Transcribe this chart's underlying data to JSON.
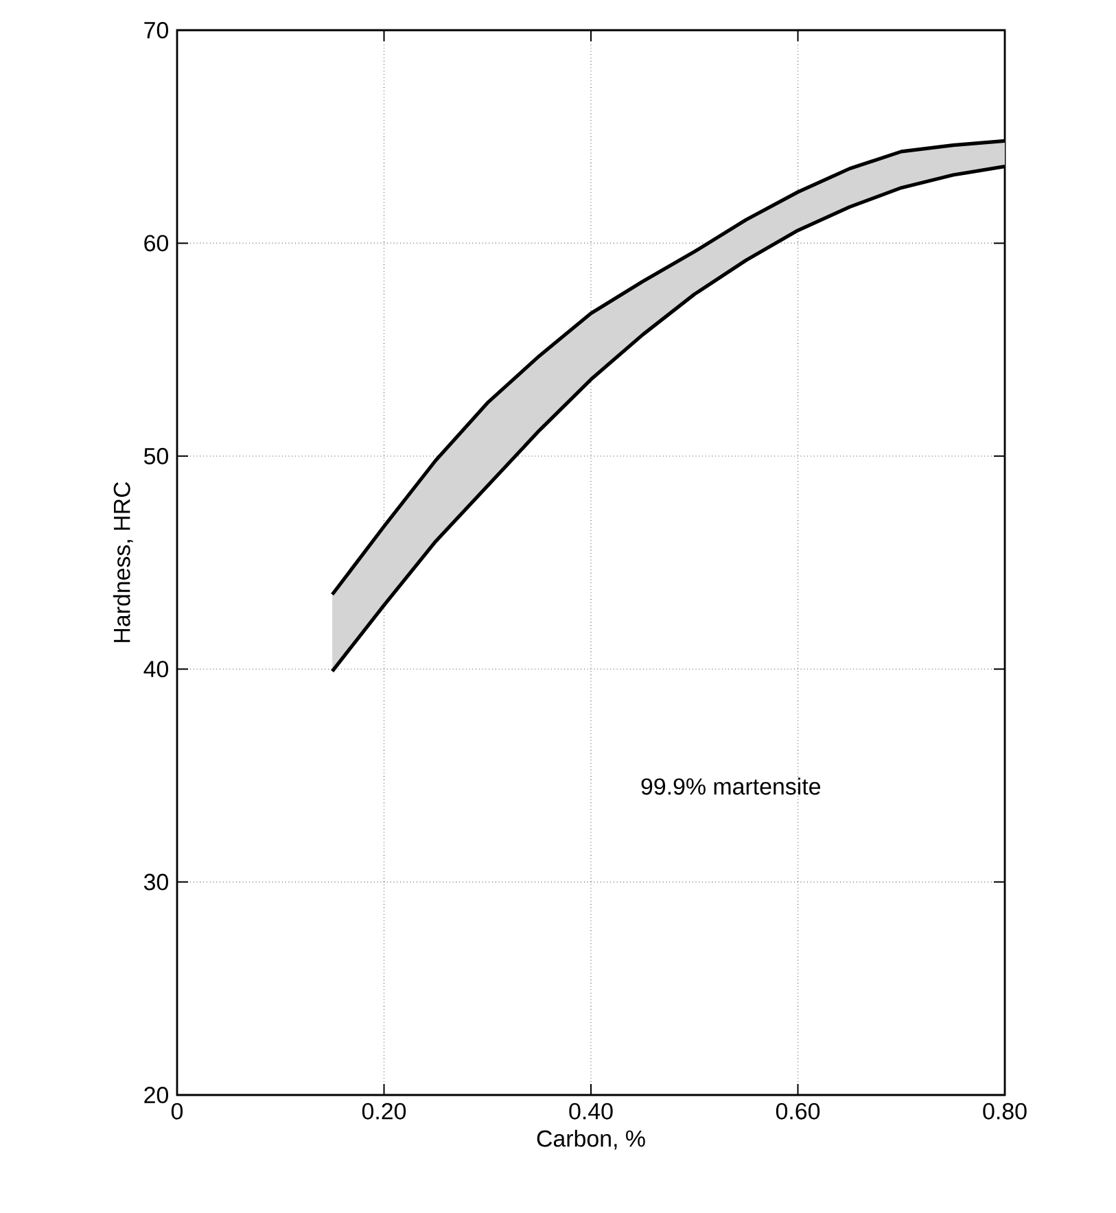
{
  "chart_data": {
    "type": "line",
    "xlabel": "Carbon, %",
    "ylabel": "Hardness, HRC",
    "annotations": [
      "99.9% martensite"
    ],
    "x": [
      0.15,
      0.2,
      0.25,
      0.3,
      0.35,
      0.4,
      0.45,
      0.5,
      0.55,
      0.6,
      0.65,
      0.7,
      0.75,
      0.8
    ],
    "series": [
      {
        "color": "#000000",
        "values": [
          43.5,
          46.7,
          49.8,
          52.5,
          54.7,
          56.7,
          58.2,
          59.6,
          61.1,
          62.4,
          63.5,
          64.3,
          64.6,
          64.8
        ],
        "lower": [
          39.9,
          43.0,
          46.0,
          48.6,
          51.2,
          53.6,
          55.7,
          57.6,
          59.2,
          60.6,
          61.7,
          62.6,
          63.2,
          63.6
        ],
        "upper": [
          43.5,
          46.7,
          49.8,
          52.5,
          54.7,
          56.7,
          58.2,
          59.6,
          61.1,
          62.4,
          63.5,
          64.3,
          64.6,
          64.8
        ]
      },
      {
        "color": "#000000",
        "values": [
          39.9,
          43.0,
          46.0,
          48.6,
          51.2,
          53.6,
          55.7,
          57.6,
          59.2,
          60.6,
          61.7,
          62.6,
          63.2,
          63.6
        ]
      }
    ],
    "xlim": [
      0,
      0.8
    ],
    "ylim": [
      20,
      70
    ],
    "xticks": [
      0,
      {
        "value": 0.2,
        "label": "0.20"
      },
      {
        "value": 0.4,
        "label": "0.40"
      },
      {
        "value": 0.6,
        "label": "0.60"
      },
      {
        "value": 0.8,
        "label": "0.80"
      }
    ],
    "yticks": [
      20,
      30,
      40,
      50,
      60,
      70
    ],
    "grid": true
  }
}
